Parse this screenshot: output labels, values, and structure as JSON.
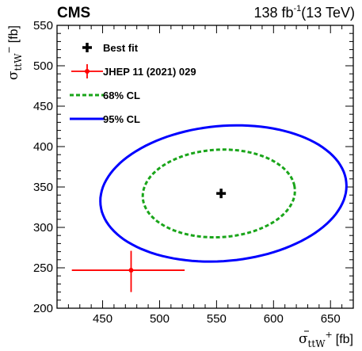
{
  "header": {
    "experiment": "CMS",
    "luminosity": "138 fb",
    "lumi_exponent": "-1",
    "energy": "(13 TeV)"
  },
  "chart_data": {
    "type": "scatter",
    "xlabel": {
      "sigma": "σ",
      "sub_tt": "tt",
      "sub_W": "W",
      "sup": "+",
      "unit": "[fb]"
    },
    "ylabel": {
      "sigma": "σ",
      "sub_tt": "tt",
      "sub_W": "W",
      "sup": "−",
      "unit": "[fb]"
    },
    "xlim": [
      410,
      670
    ],
    "ylim": [
      200,
      550
    ],
    "x_ticks": [
      450,
      500,
      550,
      600,
      650
    ],
    "y_ticks": [
      200,
      250,
      300,
      350,
      400,
      450,
      500,
      550
    ],
    "best_fit": {
      "x": 554,
      "y": 342
    },
    "reference": {
      "x": 475,
      "y": 247,
      "x_err": [
        52,
        47
      ],
      "y_err": [
        27,
        24
      ]
    },
    "contour_68": {
      "center": [
        552,
        342
      ],
      "semi_axes": [
        67,
        54
      ],
      "angle_deg": 8
    },
    "contour_95": {
      "center": [
        556,
        342
      ],
      "semi_axes": [
        109,
        83
      ],
      "angle_deg": 12
    },
    "legend": [
      {
        "label": "Best fit",
        "style": "cross",
        "color": "#000000"
      },
      {
        "label": "JHEP 11 (2021) 029",
        "style": "errorbar",
        "color": "#ff0000"
      },
      {
        "label": "68% CL",
        "style": "dashed",
        "color": "#1aa51a"
      },
      {
        "label": "95% CL",
        "style": "solid",
        "color": "#0000ff"
      }
    ],
    "legend_position": "top-left"
  }
}
